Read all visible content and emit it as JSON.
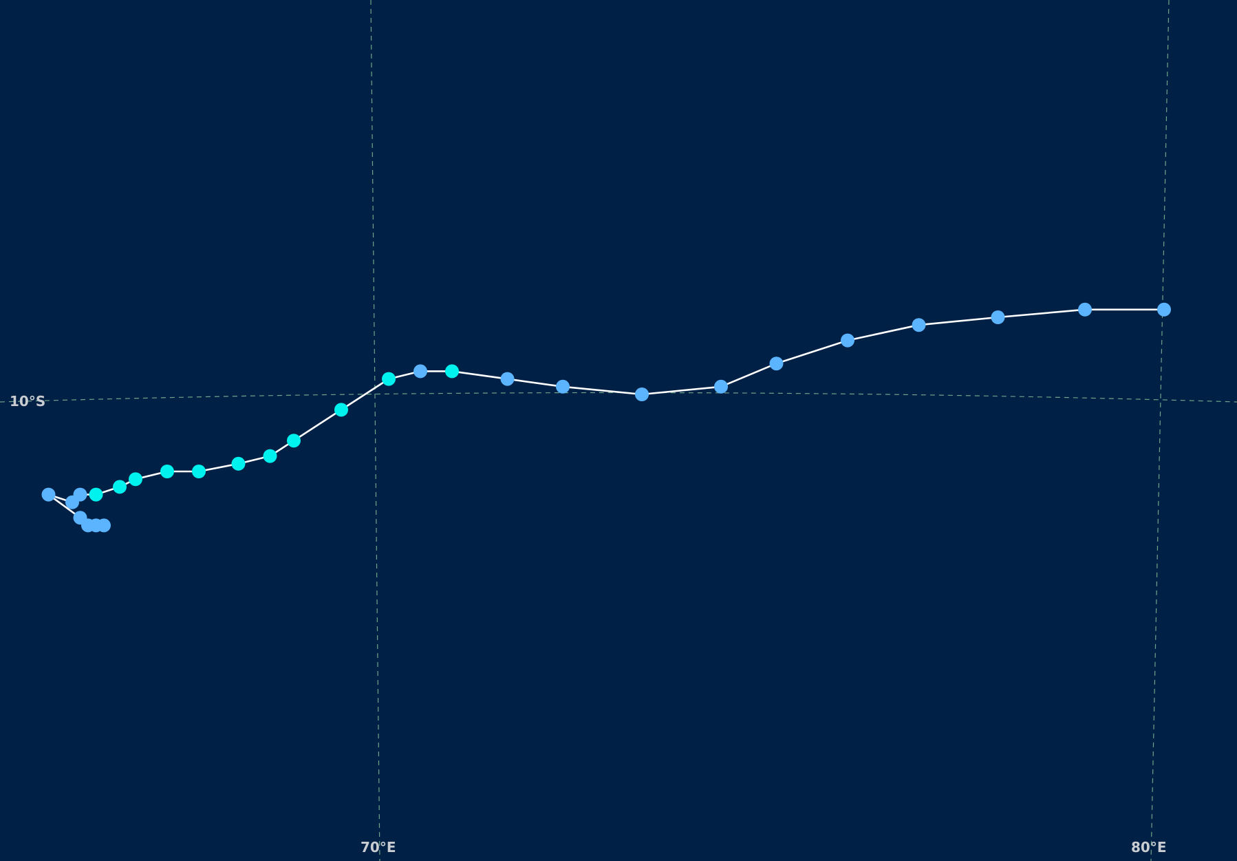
{
  "map": {
    "background_color": "#002045",
    "graticule_color": "#6fa58c",
    "track_color": "#ffffff",
    "labels": {
      "lat_10s": "10°S",
      "lon_70e": "70°E",
      "lon_80e": "80°E"
    },
    "legend_colors": {
      "weak": "#5cb4ff",
      "strong": "#00f2ee"
    },
    "track_points": [
      {
        "lon": 80.0,
        "lat": -8.9,
        "category": "weak"
      },
      {
        "lon": 79.0,
        "lat": -8.9,
        "category": "weak"
      },
      {
        "lon": 77.9,
        "lat": -9.0,
        "category": "weak"
      },
      {
        "lon": 76.9,
        "lat": -9.1,
        "category": "weak"
      },
      {
        "lon": 76.0,
        "lat": -9.3,
        "category": "weak"
      },
      {
        "lon": 75.1,
        "lat": -9.6,
        "category": "weak"
      },
      {
        "lon": 74.4,
        "lat": -9.9,
        "category": "weak"
      },
      {
        "lon": 73.4,
        "lat": -10.0,
        "category": "weak"
      },
      {
        "lon": 72.4,
        "lat": -9.9,
        "category": "weak"
      },
      {
        "lon": 71.7,
        "lat": -9.8,
        "category": "weak"
      },
      {
        "lon": 71.0,
        "lat": -9.7,
        "category": "strong"
      },
      {
        "lon": 70.6,
        "lat": -9.7,
        "category": "weak"
      },
      {
        "lon": 70.2,
        "lat": -9.8,
        "category": "strong"
      },
      {
        "lon": 69.6,
        "lat": -10.2,
        "category": "strong"
      },
      {
        "lon": 69.0,
        "lat": -10.6,
        "category": "strong"
      },
      {
        "lon": 68.7,
        "lat": -10.8,
        "category": "strong"
      },
      {
        "lon": 68.3,
        "lat": -10.9,
        "category": "strong"
      },
      {
        "lon": 67.8,
        "lat": -11.0,
        "category": "strong"
      },
      {
        "lon": 67.4,
        "lat": -11.0,
        "category": "strong"
      },
      {
        "lon": 67.0,
        "lat": -11.1,
        "category": "strong"
      },
      {
        "lon": 66.8,
        "lat": -11.2,
        "category": "strong"
      },
      {
        "lon": 66.5,
        "lat": -11.3,
        "category": "strong"
      },
      {
        "lon": 66.3,
        "lat": -11.3,
        "category": "weak"
      },
      {
        "lon": 66.2,
        "lat": -11.4,
        "category": "weak"
      },
      {
        "lon": 65.9,
        "lat": -11.3,
        "category": "weak"
      },
      {
        "lon": 66.3,
        "lat": -11.6,
        "category": "weak"
      },
      {
        "lon": 66.4,
        "lat": -11.7,
        "category": "weak"
      },
      {
        "lon": 66.5,
        "lat": -11.7,
        "category": "weak"
      },
      {
        "lon": 66.6,
        "lat": -11.7,
        "category": "weak"
      }
    ]
  }
}
